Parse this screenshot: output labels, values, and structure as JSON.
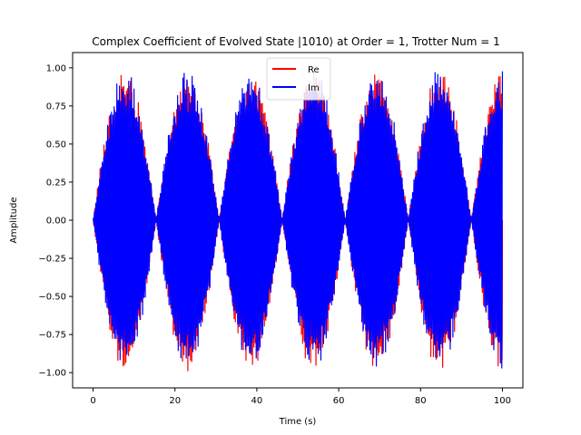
{
  "chart_data": {
    "type": "line",
    "title": "Complex Coefficient of Evolved State |1010⟩ at Order = 1, Trotter Num = 1",
    "xlabel": "Time (s)",
    "ylabel": "Amplitude",
    "xlim": [
      -5,
      105
    ],
    "ylim": [
      -1.1,
      1.1
    ],
    "x_ticks": [
      0,
      20,
      40,
      60,
      80,
      100
    ],
    "y_ticks": [
      -1.0,
      -0.75,
      -0.5,
      -0.25,
      0.0,
      0.25,
      0.5,
      0.75,
      1.0
    ],
    "x_tick_labels": [
      "0",
      "20",
      "40",
      "60",
      "80",
      "100"
    ],
    "y_tick_labels": [
      "−1.00",
      "−0.75",
      "−0.50",
      "−0.25",
      "0.00",
      "0.25",
      "0.50",
      "0.75",
      "1.00"
    ],
    "grid": false,
    "legend_position": "top-center",
    "envelope": {
      "description_free": true,
      "nodes": [
        0,
        15.4,
        30.8,
        46.2,
        61.6,
        77.0,
        92.4
      ],
      "peaks": [
        7.7,
        23.1,
        38.5,
        53.9,
        69.3,
        84.7,
        100.0
      ],
      "peak_amplitude": 1.0,
      "x_max": 100,
      "carrier_frequency": 3.1
    },
    "series": [
      {
        "name": "Re",
        "color": "#ff0000"
      },
      {
        "name": "Im",
        "color": "#0000ff"
      }
    ]
  }
}
